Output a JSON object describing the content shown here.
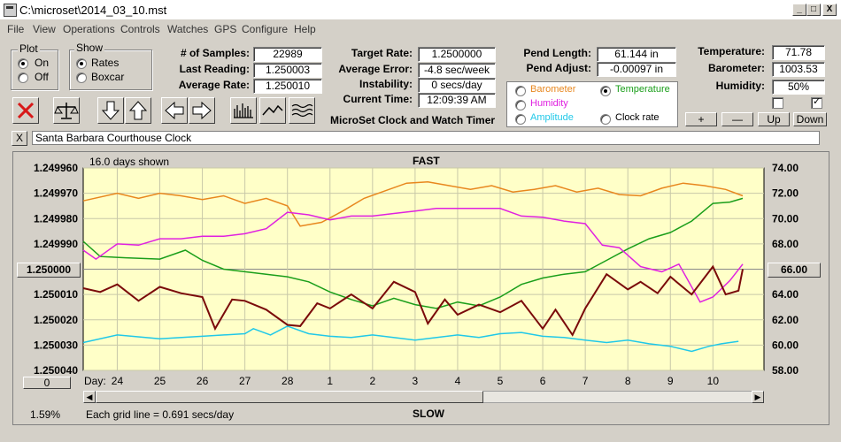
{
  "window": {
    "title": "C:\\microset\\2014_03_10.mst",
    "btn_min": "_",
    "btn_max": "□",
    "btn_close": "X"
  },
  "menu": [
    "File",
    "View",
    "Operations",
    "Controls",
    "Watches",
    "GPS",
    "Configure",
    "Help"
  ],
  "plot_group": {
    "title": "Plot",
    "on": "On",
    "off": "Off",
    "selected": "On"
  },
  "show_group": {
    "title": "Show",
    "rates": "Rates",
    "boxcar": "Boxcar",
    "selected": "Rates"
  },
  "stats": {
    "samples_label": "# of Samples:",
    "samples": "22989",
    "last_label": "Last Reading:",
    "last": "1.250003",
    "avg_rate_label": "Average Rate:",
    "avg_rate": "1.250010",
    "target_label": "Target Rate:",
    "target": "1.2500000",
    "avg_err_label": "Average Error:",
    "avg_err": "-4.8 sec/week",
    "instab_label": "Instability:",
    "instab": "0 secs/day",
    "time_label": "Current Time:",
    "time": "12:09:39 AM",
    "pend_len_label": "Pend Length:",
    "pend_len": "61.144 in",
    "pend_adj_label": "Pend Adjust:",
    "pend_adj": "-0.00097 in",
    "temp_label": "Temperature:",
    "temp": "71.78",
    "baro_label": "Barometer:",
    "baro": "1003.53",
    "hum_label": "Humidity:",
    "hum": "50%"
  },
  "app_name": "MicroSet Clock and Watch Timer",
  "sensor_options": [
    {
      "label": "Barometer",
      "color": "#e8871e",
      "selected": false
    },
    {
      "label": "Temperature",
      "color": "#1a9e1a",
      "selected": true
    },
    {
      "label": "Humidity",
      "color": "#e020e0",
      "selected": false
    },
    {
      "label": "Amplitude",
      "color": "#20c8e8",
      "selected": false
    },
    {
      "label": "Clock rate",
      "color": "#000000",
      "selected": false
    }
  ],
  "scale_buttons": {
    "plus": "+",
    "minus": "—",
    "up": "Up",
    "down": "Down"
  },
  "watch_name": "Santa Barbara Courthouse Clock",
  "watch_clear": "X",
  "chart_header": {
    "days_shown": "16.0 days shown",
    "fast": "FAST",
    "slow": "SLOW",
    "grid_note": "Each grid line = 0.691 secs/day",
    "percent": "1.59%",
    "day_label": "Day:"
  },
  "left_ref": "1.250000",
  "right_ref": "66.00",
  "left_zero": "0",
  "chart_data": {
    "type": "line",
    "x_ticks": [
      "24",
      "25",
      "26",
      "27",
      "28",
      "1",
      "2",
      "3",
      "4",
      "5",
      "6",
      "7",
      "8",
      "9",
      "10"
    ],
    "y_left_ticks": [
      "1.249960",
      "1.249970",
      "1.249980",
      "1.249990",
      "1.250000",
      "1.250010",
      "1.250020",
      "1.250030",
      "1.250040"
    ],
    "y_right_ticks": [
      "74.00",
      "72.00",
      "70.00",
      "68.00",
      "66.00",
      "64.00",
      "62.00",
      "60.00",
      "58.00"
    ],
    "y_left_range": [
      1.24996,
      1.25004
    ],
    "y_right_range": [
      58,
      74
    ],
    "x_range": [
      23.2,
      39.2
    ],
    "grid": true,
    "series": [
      {
        "name": "Barometer",
        "color": "#e8871e",
        "x": [
          23.2,
          24,
          24.5,
          25,
          25.5,
          26,
          26.5,
          27,
          27.5,
          28,
          28.3,
          28.8,
          29.3,
          29.8,
          30.3,
          30.8,
          31.3,
          31.8,
          32.3,
          32.8,
          33.3,
          33.8,
          34.3,
          34.8,
          35.3,
          35.8,
          36.3,
          36.8,
          37.3,
          37.8,
          38.3,
          38.7
        ],
        "y": [
          71.4,
          72.0,
          71.6,
          72.0,
          71.8,
          71.5,
          71.8,
          71.2,
          71.6,
          71.0,
          69.4,
          69.7,
          70.6,
          71.6,
          72.2,
          72.8,
          72.9,
          72.6,
          72.3,
          72.6,
          72.1,
          72.3,
          72.6,
          72.1,
          72.4,
          71.9,
          71.8,
          72.4,
          72.8,
          72.6,
          72.3,
          71.8
        ]
      },
      {
        "name": "Temperature",
        "color": "#1a9e1a",
        "x": [
          23.2,
          23.6,
          24.2,
          25,
          25.6,
          26,
          26.5,
          27,
          27.5,
          28,
          28.5,
          29,
          29.5,
          30,
          30.5,
          31,
          31.5,
          32,
          32.5,
          33,
          33.5,
          34,
          34.5,
          35,
          35.5,
          36,
          36.5,
          37,
          37.5,
          38,
          38.4,
          38.7
        ],
        "y": [
          68.2,
          67.0,
          66.9,
          66.8,
          67.5,
          66.7,
          66.0,
          65.8,
          65.6,
          65.4,
          65.0,
          64.2,
          63.6,
          63.1,
          63.7,
          63.2,
          62.9,
          63.4,
          63.1,
          63.8,
          64.8,
          65.3,
          65.6,
          65.8,
          66.7,
          67.6,
          68.4,
          68.9,
          69.8,
          71.2,
          71.3,
          71.6
        ]
      },
      {
        "name": "Humidity",
        "color": "#e020e0",
        "x": [
          23.2,
          23.5,
          24,
          24.5,
          25,
          25.5,
          26,
          26.5,
          27,
          27.5,
          28,
          28.5,
          29,
          29.5,
          30,
          30.5,
          31,
          31.5,
          32,
          32.5,
          33,
          33.5,
          34,
          34.5,
          35,
          35.4,
          35.8,
          36.3,
          36.8,
          37.2,
          37.7,
          38,
          38.4,
          38.7
        ],
        "y": [
          67.5,
          66.8,
          68.0,
          67.9,
          68.4,
          68.4,
          68.6,
          68.6,
          68.8,
          69.2,
          70.5,
          70.3,
          69.9,
          70.2,
          70.2,
          70.4,
          70.6,
          70.8,
          70.8,
          70.8,
          70.8,
          70.2,
          70.1,
          69.8,
          69.6,
          67.9,
          67.7,
          66.2,
          65.8,
          66.4,
          63.4,
          63.8,
          65.1,
          66.4
        ]
      },
      {
        "name": "Amplitude",
        "color": "#20c8e8",
        "x": [
          23.2,
          24,
          25,
          26,
          27,
          27.2,
          27.6,
          28,
          28.5,
          29,
          29.5,
          30,
          31,
          32,
          32.5,
          33,
          33.5,
          34,
          34.5,
          35,
          35.5,
          36,
          36.5,
          37,
          37.5,
          37.9,
          38.2,
          38.6
        ],
        "y": [
          60.2,
          60.8,
          60.5,
          60.7,
          60.9,
          61.3,
          60.8,
          61.5,
          60.9,
          60.7,
          60.6,
          60.8,
          60.4,
          60.8,
          60.6,
          60.9,
          61.0,
          60.7,
          60.6,
          60.4,
          60.2,
          60.4,
          60.1,
          59.9,
          59.5,
          59.9,
          60.1,
          60.3
        ]
      },
      {
        "name": "Clock rate",
        "color": "#7a0a0a",
        "x": [
          23.2,
          23.6,
          24,
          24.5,
          25,
          25.5,
          26,
          26.3,
          26.7,
          27,
          27.5,
          28,
          28.3,
          28.7,
          29,
          29.5,
          30,
          30.5,
          31,
          31.3,
          31.7,
          32,
          32.5,
          33,
          33.5,
          34,
          34.3,
          34.7,
          35,
          35.5,
          36,
          36.3,
          36.7,
          37,
          37.5,
          38,
          38.3,
          38.6,
          38.7
        ],
        "y": [
          64.5,
          64.2,
          64.8,
          63.5,
          64.6,
          64.1,
          63.8,
          61.3,
          63.6,
          63.5,
          62.8,
          61.6,
          61.5,
          63.3,
          62.9,
          64.0,
          62.9,
          65.0,
          64.2,
          61.7,
          63.6,
          62.4,
          63.2,
          62.6,
          63.5,
          61.3,
          62.8,
          60.8,
          62.9,
          65.6,
          64.4,
          65.0,
          64.1,
          65.4,
          64.0,
          66.2,
          64.0,
          64.3,
          66.0
        ]
      }
    ]
  }
}
